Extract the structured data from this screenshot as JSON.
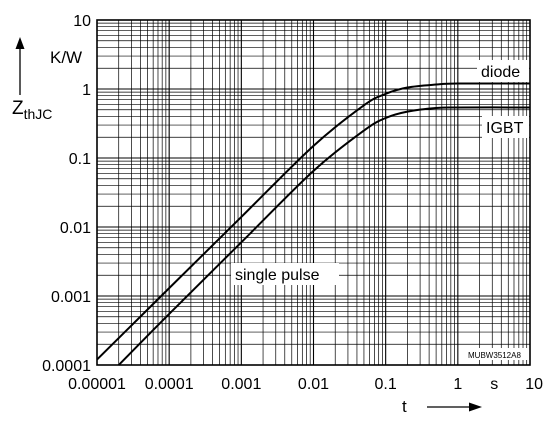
{
  "chart_data": {
    "type": "line",
    "title": "",
    "x_scale": "log",
    "y_scale": "log",
    "xlim": [
      1e-05,
      10
    ],
    "ylim": [
      0.0001,
      10
    ],
    "grid": true,
    "x_ticks": [
      {
        "value": 1e-05,
        "label": "0.00001"
      },
      {
        "value": 0.0001,
        "label": "0.0001"
      },
      {
        "value": 0.001,
        "label": "0.001"
      },
      {
        "value": 0.01,
        "label": "0.01"
      },
      {
        "value": 0.1,
        "label": "0.1"
      },
      {
        "value": 1,
        "label": "1"
      },
      {
        "value": 10,
        "label": "10"
      }
    ],
    "x_unit": "s",
    "xlabel": "t",
    "y_ticks": [
      {
        "value": 10,
        "label": "10"
      },
      {
        "value": 1,
        "label": "1"
      },
      {
        "value": 0.1,
        "label": "0.1"
      },
      {
        "value": 0.01,
        "label": "0.01"
      },
      {
        "value": 0.001,
        "label": "0.001"
      },
      {
        "value": 0.0001,
        "label": "0.0001"
      }
    ],
    "y_unit": "K/W",
    "ylabel_main": "Z",
    "ylabel_sub": "thJC",
    "series": [
      {
        "name": "diode",
        "color": "#000000",
        "x": [
          1e-05,
          0.0001,
          0.001,
          0.01,
          0.05,
          0.1,
          0.2,
          0.5,
          1,
          10
        ],
        "y": [
          0.00012,
          0.0013,
          0.014,
          0.15,
          0.58,
          0.85,
          1.05,
          1.16,
          1.2,
          1.2
        ]
      },
      {
        "name": "IGBT",
        "color": "#000000",
        "x": [
          2e-05,
          0.0001,
          0.001,
          0.01,
          0.05,
          0.1,
          0.2,
          0.5,
          1,
          10
        ],
        "y": [
          0.0001,
          0.00055,
          0.006,
          0.065,
          0.25,
          0.38,
          0.47,
          0.53,
          0.54,
          0.54
        ]
      }
    ],
    "annotations": {
      "single_pulse": "single pulse",
      "code": "MUBW3512A8"
    }
  }
}
